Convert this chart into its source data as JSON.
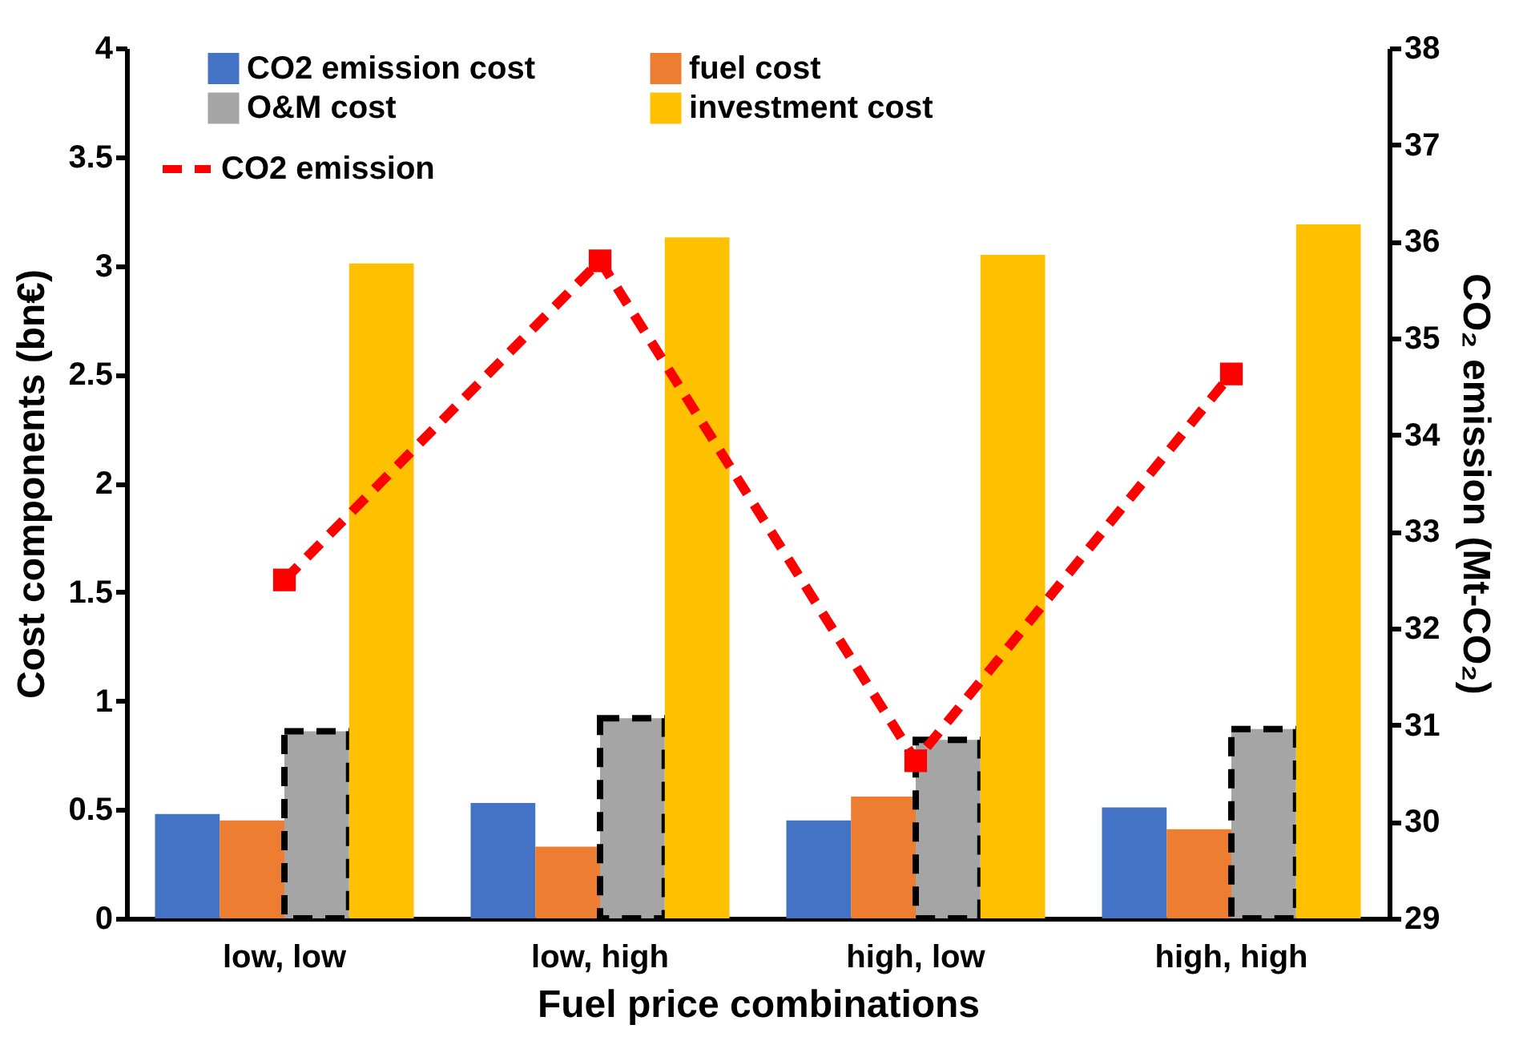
{
  "chart_data": {
    "type": "bar",
    "xlabel": "Fuel price combinations",
    "ylabel": "Cost components (bn€)",
    "y2label": "CO₂ emission (Mt-CO₂)",
    "categories": [
      "low, low",
      "low, high",
      "high, low",
      "high, high"
    ],
    "series": [
      {
        "name": "CO2 emission cost",
        "color": "#4472c4",
        "values": [
          0.48,
          0.53,
          0.45,
          0.51
        ]
      },
      {
        "name": "fuel cost",
        "color": "#ed7d31",
        "values": [
          0.45,
          0.33,
          0.56,
          0.41
        ]
      },
      {
        "name": "O&M cost",
        "color": "#a5a5a5",
        "line_style": "dashed",
        "values": [
          0.86,
          0.92,
          0.82,
          0.87
        ]
      },
      {
        "name": "investment cost",
        "color": "#ffc000",
        "values": [
          3.01,
          3.13,
          3.05,
          3.19
        ]
      },
      {
        "name": "CO2 emission",
        "type": "line",
        "axis": "y2",
        "color": "#ff0000",
        "marker": "square",
        "line_style": "dashed",
        "values": [
          32.5,
          35.8,
          30.63,
          34.63
        ]
      }
    ],
    "ylim": [
      0,
      4
    ],
    "yticks": [
      0,
      0.5,
      1,
      1.5,
      2,
      2.5,
      3,
      3.5,
      4
    ],
    "y2lim": [
      29,
      38
    ],
    "y2ticks": [
      29,
      30,
      31,
      32,
      33,
      34,
      35,
      36,
      37,
      38
    ],
    "legend": "top left",
    "grid": false
  }
}
